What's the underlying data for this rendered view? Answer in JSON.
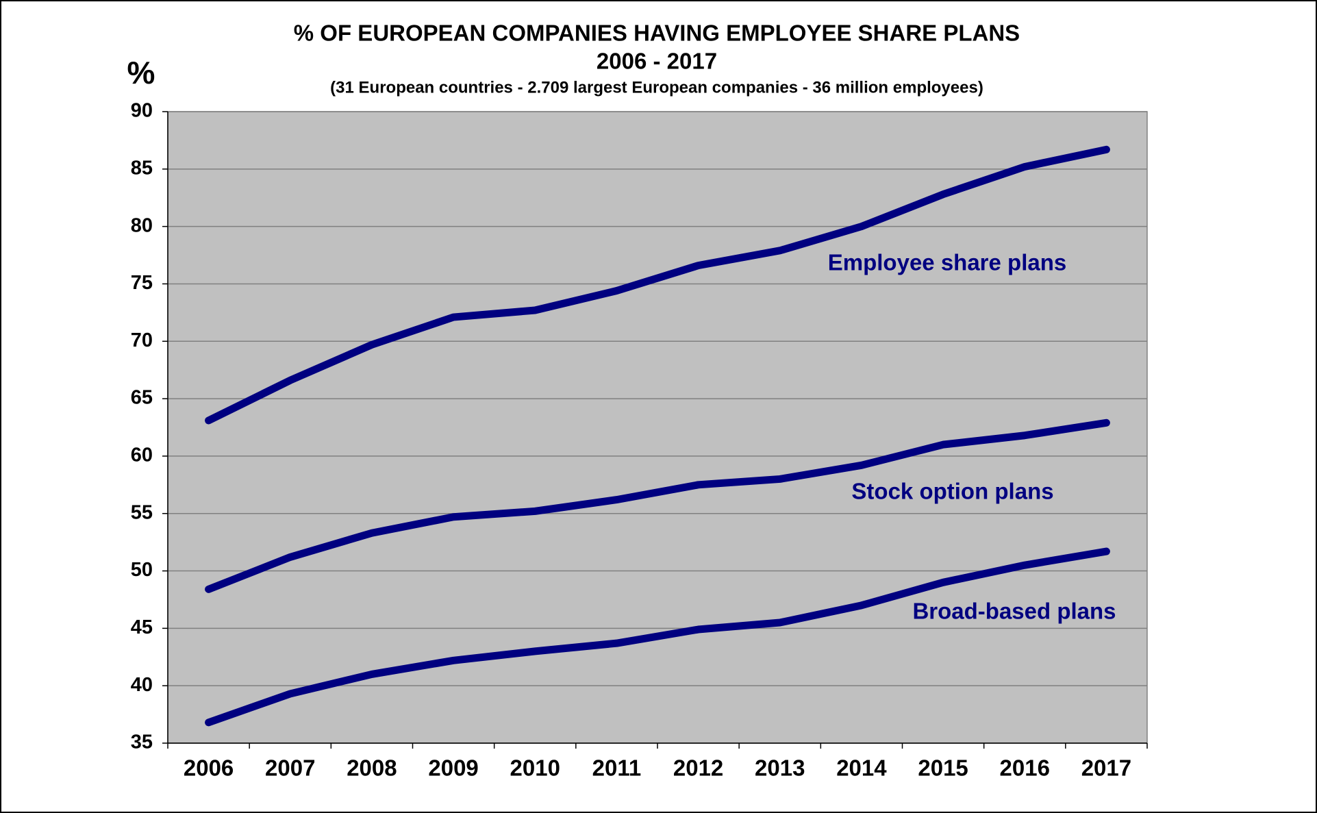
{
  "chart_data": {
    "type": "line",
    "title": "% OF  EUROPEAN  COMPANIES  HAVING  EMPLOYEE  SHARE  PLANS",
    "subtitle": "2006 - 2017",
    "note": "(31 European countries - 2.709 largest European companies - 36 million employees)",
    "y_label": "%",
    "categories": [
      "2006",
      "2007",
      "2008",
      "2009",
      "2010",
      "2011",
      "2012",
      "2013",
      "2014",
      "2015",
      "2016",
      "2017"
    ],
    "series": [
      {
        "name": "Employee share plans",
        "color": "#000080",
        "values": [
          63.1,
          66.6,
          69.7,
          72.1,
          72.7,
          74.4,
          76.6,
          77.9,
          80.0,
          82.8,
          85.2,
          86.7
        ]
      },
      {
        "name": "Stock option plans",
        "color": "#000080",
        "values": [
          48.4,
          51.2,
          53.3,
          54.7,
          55.2,
          56.2,
          57.5,
          58.0,
          59.2,
          61.0,
          61.8,
          62.9
        ]
      },
      {
        "name": "Broad-based plans",
        "color": "#000080",
        "values": [
          36.8,
          39.3,
          41.0,
          42.2,
          43.0,
          43.7,
          44.9,
          45.5,
          47.0,
          49.0,
          50.5,
          51.7
        ]
      }
    ],
    "ylim": [
      35,
      90
    ],
    "yticks": [
      35,
      40,
      45,
      50,
      55,
      60,
      65,
      70,
      75,
      80,
      85,
      90
    ],
    "grid": true
  }
}
